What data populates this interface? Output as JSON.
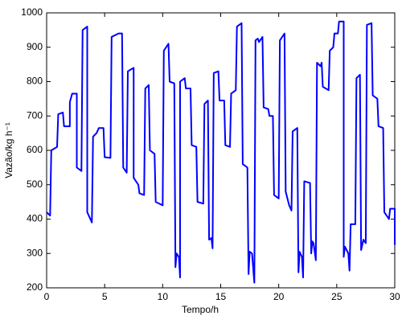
{
  "chart_data": {
    "type": "line",
    "x_label": "Tempo/h",
    "y_label": "Vazão/kg h⁻¹",
    "x": [
      0,
      0.3,
      0.4,
      0.9,
      1.0,
      1.4,
      1.5,
      2.0,
      2.0,
      2.2,
      2.6,
      2.6,
      3.0,
      3.1,
      3.5,
      3.5,
      3.9,
      4.0,
      4.3,
      4.5,
      4.9,
      5.0,
      5.5,
      5.6,
      6.2,
      6.5,
      6.6,
      6.9,
      7.0,
      7.5,
      7.5,
      7.9,
      8.0,
      8.4,
      8.5,
      8.8,
      8.9,
      9.3,
      9.4,
      10.0,
      10.1,
      10.5,
      10.6,
      11.0,
      11.1,
      11.2,
      11.4,
      11.5,
      11.5,
      11.9,
      12.0,
      12.4,
      12.5,
      12.9,
      13.0,
      13.5,
      13.6,
      13.9,
      14.0,
      14.2,
      14.3,
      14.4,
      14.8,
      14.9,
      15.3,
      15.4,
      15.8,
      15.9,
      16.3,
      16.4,
      16.8,
      16.9,
      17.3,
      17.4,
      17.5,
      17.7,
      17.9,
      18.0,
      18.2,
      18.3,
      18.6,
      18.7,
      19.1,
      19.2,
      19.5,
      19.6,
      20.0,
      20.1,
      20.5,
      20.6,
      20.9,
      21.1,
      21.2,
      21.6,
      21.7,
      21.8,
      22.0,
      22.1,
      22.2,
      22.7,
      22.8,
      22.9,
      23.0,
      23.2,
      23.3,
      23.6,
      23.7,
      23.8,
      24.3,
      24.4,
      24.7,
      24.8,
      25.1,
      25.2,
      25.6,
      25.6,
      25.7,
      26.0,
      26.1,
      26.2,
      26.6,
      26.7,
      27.0,
      27.1,
      27.3,
      27.5,
      27.6,
      28.0,
      28.1,
      28.5,
      28.6,
      29.0,
      29.1,
      29.5,
      29.6,
      30,
      30
    ],
    "series": [
      {
        "color": "#0000ff",
        "values": [
          420,
          410,
          600,
          610,
          705,
          710,
          670,
          670,
          740,
          765,
          765,
          550,
          540,
          950,
          960,
          420,
          390,
          640,
          650,
          665,
          665,
          580,
          578,
          930,
          940,
          940,
          550,
          535,
          830,
          840,
          520,
          500,
          475,
          470,
          780,
          790,
          600,
          590,
          450,
          440,
          890,
          910,
          800,
          795,
          260,
          300,
          290,
          230,
          800,
          810,
          780,
          780,
          615,
          610,
          450,
          445,
          735,
          745,
          340,
          345,
          315,
          825,
          830,
          745,
          745,
          615,
          610,
          765,
          775,
          960,
          970,
          560,
          550,
          240,
          305,
          300,
          215,
          920,
          925,
          915,
          930,
          725,
          720,
          700,
          700,
          470,
          460,
          920,
          940,
          480,
          440,
          425,
          655,
          665,
          245,
          305,
          290,
          230,
          510,
          505,
          300,
          335,
          330,
          280,
          855,
          845,
          855,
          785,
          775,
          890,
          900,
          940,
          940,
          975,
          975,
          290,
          320,
          300,
          250,
          385,
          385,
          810,
          820,
          310,
          340,
          330,
          965,
          970,
          760,
          750,
          670,
          665,
          420,
          400,
          430,
          430,
          325
        ]
      }
    ],
    "xlim": [
      0,
      30
    ],
    "xticks": [
      0,
      5,
      10,
      15,
      20,
      25,
      30
    ],
    "ylim": [
      200,
      1000
    ],
    "yticks": [
      200,
      300,
      400,
      500,
      600,
      700,
      800,
      900,
      1000
    ]
  }
}
